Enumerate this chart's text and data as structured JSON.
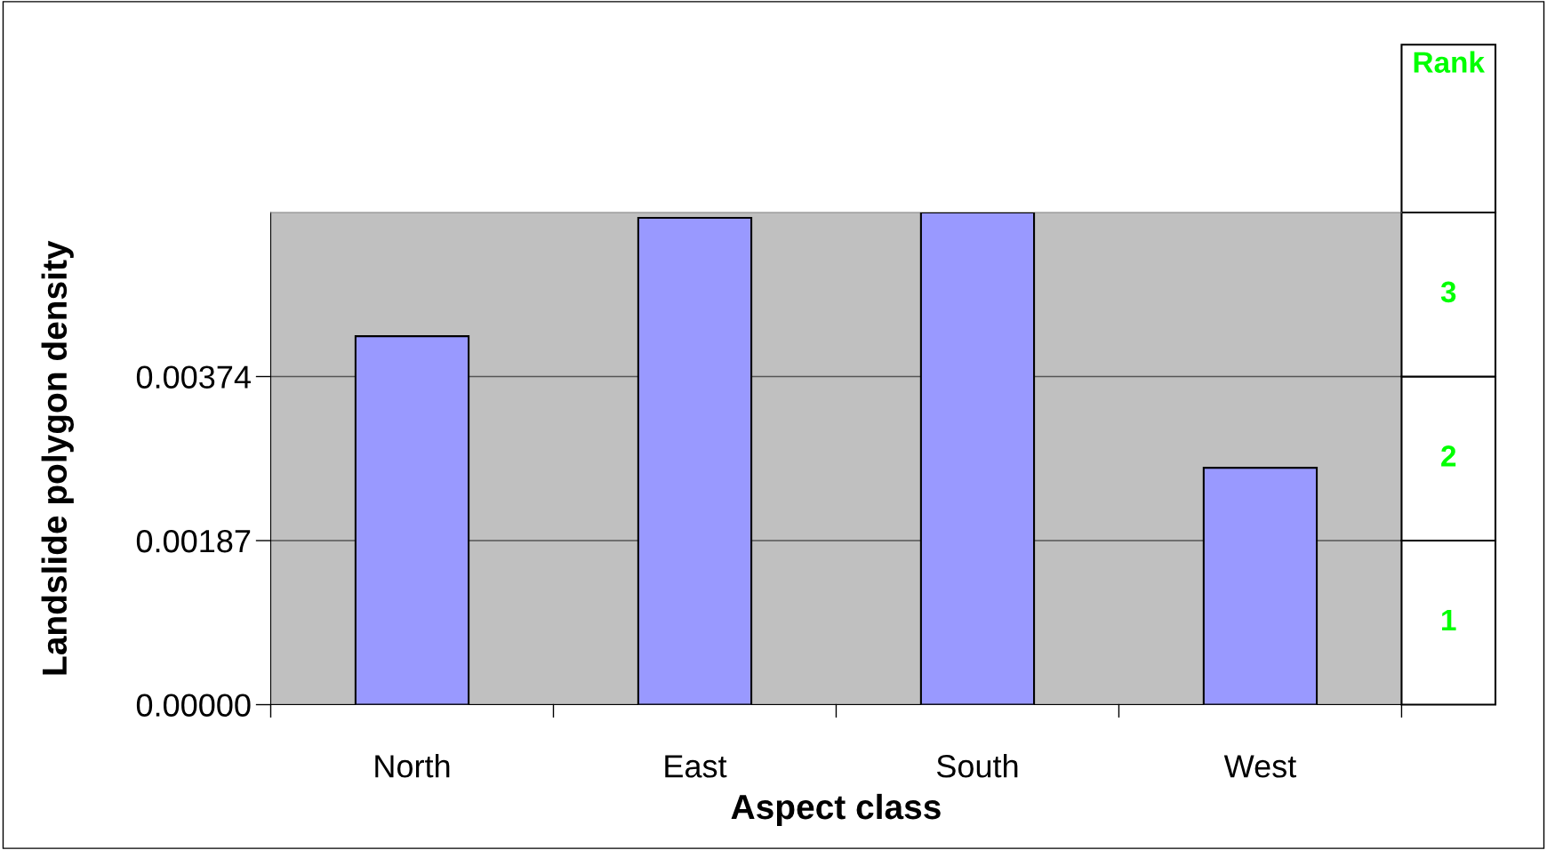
{
  "chart_data": {
    "type": "bar",
    "xlabel": "Aspect class",
    "ylabel": "Landslide polygon density",
    "categories": [
      "North",
      "East",
      "South",
      "West"
    ],
    "values": [
      0.0042,
      0.00555,
      0.00561,
      0.0027
    ],
    "color": "#9999ff",
    "ylim": [
      0,
      0.00561
    ],
    "yticks": [
      {
        "value": 0,
        "label": "0.00000"
      },
      {
        "value": 0.00187,
        "label": "0.00187"
      },
      {
        "value": 0.00374,
        "label": "0.00374"
      }
    ],
    "grid": "y",
    "annotations": [
      "Rank",
      "3",
      "2",
      "1"
    ]
  }
}
